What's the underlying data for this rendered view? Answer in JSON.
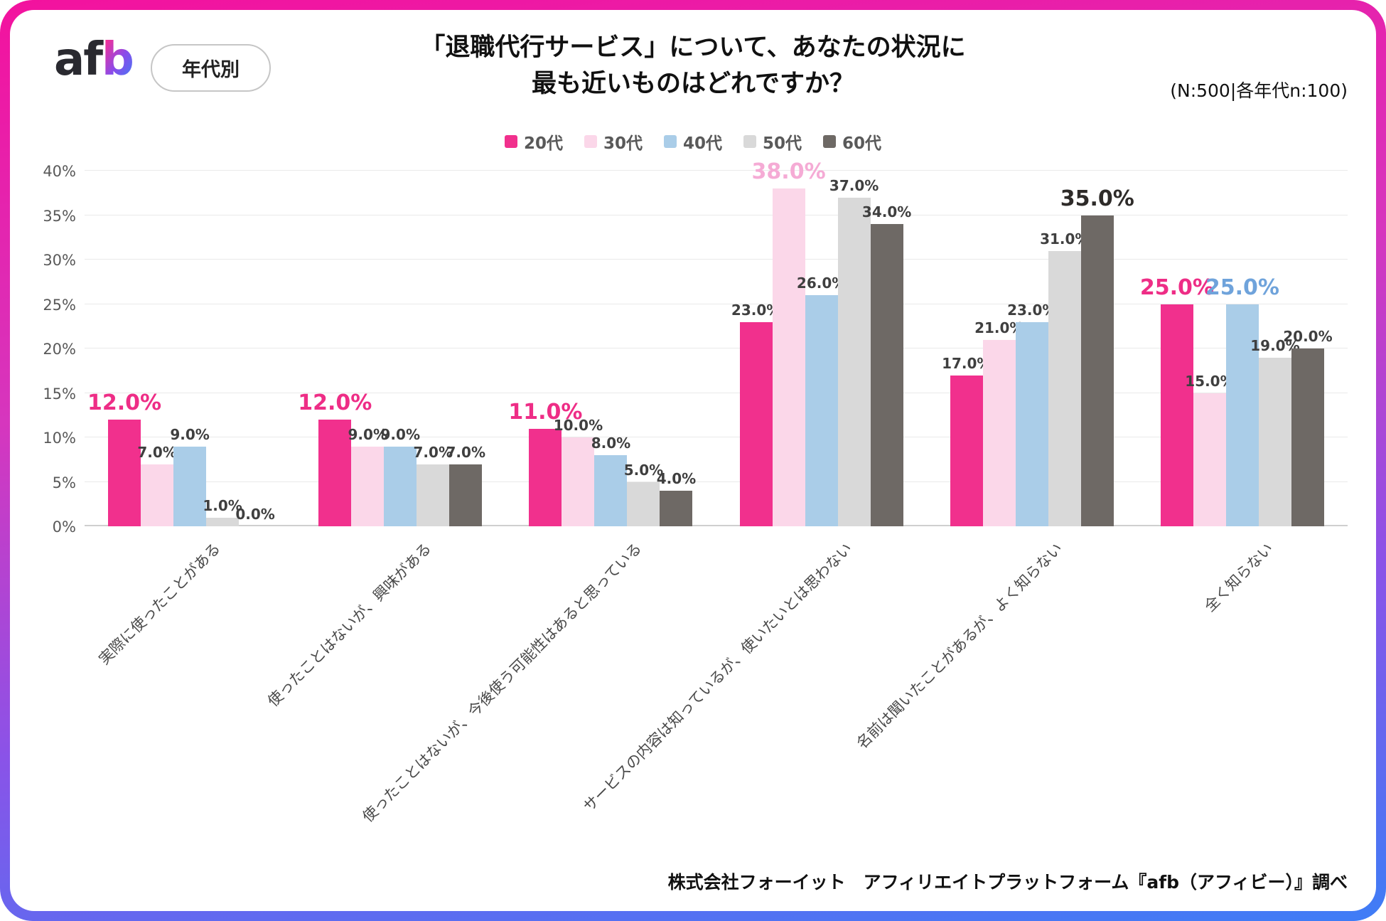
{
  "header": {
    "logo_dark": "af",
    "logo_gradient": "b",
    "badge": "年代別",
    "title_line1": "「退職代行サービス」について、あなたの状況に",
    "title_line2": "最も近いものはどれですか？",
    "sample_note": "(N:500|各年代n:100)"
  },
  "chart_data": {
    "type": "bar",
    "title": "「退職代行サービス」について、あなたの状況に最も近いものはどれですか？",
    "categories": [
      "実際に使ったことがある",
      "使ったことはないが、興味がある",
      "使ったことはないが、今後使う可能性はあると思っている",
      "サービスの内容は知っているが、使いたいとは思わない",
      "名前は聞いたことがあるが、よく知らない",
      "全く知らない"
    ],
    "series": [
      {
        "name": "20代",
        "color": "#F1308D",
        "values": [
          12.0,
          12.0,
          11.0,
          23.0,
          17.0,
          25.0
        ]
      },
      {
        "name": "30代",
        "color": "#FBD7E9",
        "values": [
          7.0,
          9.0,
          10.0,
          38.0,
          21.0,
          15.0
        ]
      },
      {
        "name": "40代",
        "color": "#AACDE8",
        "values": [
          9.0,
          9.0,
          8.0,
          26.0,
          23.0,
          25.0
        ]
      },
      {
        "name": "50代",
        "color": "#D9D9D9",
        "values": [
          1.0,
          7.0,
          5.0,
          37.0,
          31.0,
          19.0
        ]
      },
      {
        "name": "60代",
        "color": "#6E6965",
        "values": [
          0.0,
          7.0,
          4.0,
          34.0,
          35.0,
          20.0
        ]
      }
    ],
    "ylim": [
      0,
      40
    ],
    "ytick_step": 5,
    "yticks": [
      "0%",
      "5%",
      "10%",
      "15%",
      "20%",
      "25%",
      "30%",
      "35%",
      "40%"
    ],
    "grid": true,
    "legend_position": "top",
    "value_suffix": "%",
    "highlights": [
      {
        "category": 0,
        "series": 0,
        "color": "#EE2D86"
      },
      {
        "category": 1,
        "series": 0,
        "color": "#EE2D86"
      },
      {
        "category": 2,
        "series": 0,
        "color": "#EE2D86"
      },
      {
        "category": 3,
        "series": 1,
        "color": "#F5ABD5"
      },
      {
        "category": 4,
        "series": 4,
        "color": "#2E2B29"
      },
      {
        "category": 5,
        "series": 0,
        "color": "#EE2D86"
      },
      {
        "category": 5,
        "series": 2,
        "color": "#6FA3DB"
      }
    ]
  },
  "footer": "株式会社フォーイット　アフィリエイトプラットフォーム『afb（アフィビー）』調べ"
}
